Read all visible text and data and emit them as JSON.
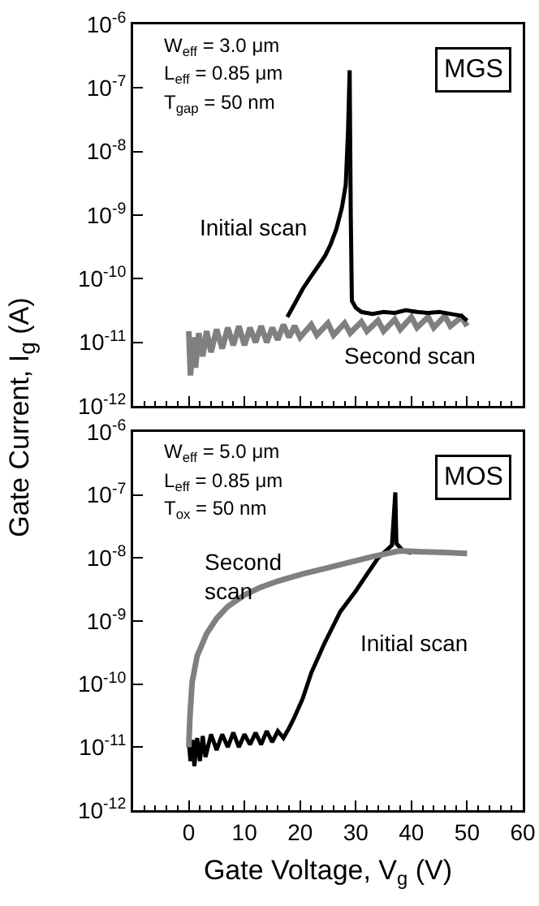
{
  "chart_data": [
    {
      "type": "line",
      "ylabel": "Gate Current, I$_{g}$ (A)",
      "xlim": [
        -10,
        60
      ],
      "xticks": [
        0,
        10,
        20,
        30,
        40,
        50,
        60
      ],
      "ylim": [
        1e-12,
        1e-06
      ],
      "log": "y",
      "tick_labels": "y",
      "grid": false,
      "yticks": [
        {
          "value": 1e-12,
          "label": "10$^{-12}$"
        },
        {
          "value": 1e-11,
          "label": "10$^{-11}$"
        },
        {
          "value": 1e-10,
          "label": "10$^{-10}$"
        },
        {
          "value": 1e-09,
          "label": "10$^{-9}$"
        },
        {
          "value": 1e-08,
          "label": "10$^{-8}$"
        },
        {
          "value": 1e-07,
          "label": "10$^{-7}$"
        },
        {
          "value": 1e-06,
          "label": "10$^{-6}$"
        }
      ],
      "annotations": [
        "W$_{eff}$ = 3.0 μm",
        "L$_{eff}$ = 0.85 μm",
        "T$_{gap}$ = 50 nm",
        "MGS",
        "Initial scan",
        "Second scan"
      ],
      "series": [
        {
          "color": "#808080",
          "x": [
            0,
            0.3,
            0.8,
            1.2,
            1.8,
            2.5,
            3.2,
            4,
            5,
            6,
            7,
            8,
            9,
            10,
            11,
            12,
            13,
            14,
            15,
            16,
            17,
            18,
            19,
            20,
            22,
            23,
            25,
            26,
            28,
            29,
            31,
            32,
            34,
            35,
            37,
            38,
            40,
            41,
            43,
            44,
            46,
            47,
            49,
            50
          ],
          "values": [
            1.5e-11,
            3e-12,
            1.2e-11,
            4e-12,
            1.4e-11,
            6e-12,
            1.5e-11,
            7e-12,
            1.6e-11,
            8e-12,
            1.7e-11,
            9e-12,
            1.8e-11,
            9e-12,
            1.7e-11,
            1e-11,
            1.8e-11,
            1e-11,
            1.7e-11,
            1.1e-11,
            1.9e-11,
            1.2e-11,
            1.8e-11,
            1.2e-11,
            1.9e-11,
            1.3e-11,
            2e-11,
            1.3e-11,
            2e-11,
            1.4e-11,
            2.1e-11,
            1.5e-11,
            2.2e-11,
            1.5e-11,
            2.3e-11,
            1.6e-11,
            2.5e-11,
            1.7e-11,
            2.5e-11,
            1.7e-11,
            2.6e-11,
            1.8e-11,
            2.5e-11,
            1.8e-11
          ]
        },
        {
          "color": "#000000",
          "x": [
            17.7,
            19,
            20.5,
            22,
            23.5,
            24.5,
            25.5,
            26.5,
            27.5,
            28.2,
            28.6,
            28.9,
            29.1,
            29.3,
            30,
            31,
            33,
            35,
            37,
            39,
            41,
            43,
            45,
            47,
            49,
            50
          ],
          "values": [
            2.5e-11,
            4e-11,
            7e-11,
            1.1e-10,
            1.7e-10,
            2.3e-10,
            3.5e-10,
            6e-10,
            1.3e-09,
            3e-09,
            2e-08,
            1.9e-07,
            1e-09,
            4.5e-11,
            3.5e-11,
            3e-11,
            2.8e-11,
            3e-11,
            2.9e-11,
            3.2e-11,
            3e-11,
            2.9e-11,
            3e-11,
            2.8e-11,
            2.6e-11,
            2.2e-11
          ]
        }
      ]
    },
    {
      "type": "line",
      "xlabel": "Gate Voltage, V$_{g}$ (V)",
      "xlim": [
        -10,
        60
      ],
      "xticks": [
        0,
        10,
        20,
        30,
        40,
        50,
        60
      ],
      "ylim": [
        1e-12,
        1e-06
      ],
      "log": "y",
      "grid": false,
      "yticks": [
        {
          "value": 1e-12,
          "label": "10$^{-12}$"
        },
        {
          "value": 1e-11,
          "label": "10$^{-11}$"
        },
        {
          "value": 1e-10,
          "label": "10$^{-10}$"
        },
        {
          "value": 1e-09,
          "label": "10$^{-9}$"
        },
        {
          "value": 1e-08,
          "label": "10$^{-8}$"
        },
        {
          "value": 1e-07,
          "label": "10$^{-7}$"
        },
        {
          "value": 1e-06,
          "label": "10$^{-6}$"
        }
      ],
      "annotations": [
        "W$_{eff}$ = 5.0 μm",
        "L$_{eff}$ = 0.85 μm",
        "T$_{ox}$ = 50 nm",
        "MOS",
        "Second\nscan",
        "Initial scan"
      ],
      "series": [
        {
          "color": "#000000",
          "x": [
            0,
            0.3,
            0.7,
            1,
            1.5,
            2,
            2.5,
            3,
            4,
            5,
            6,
            7,
            8,
            9,
            10,
            11,
            12,
            13,
            14,
            15,
            16,
            17,
            18,
            19,
            20.5,
            22,
            24.3,
            27.2,
            30,
            32,
            34,
            36.5,
            37.1,
            37.3,
            38.5,
            40
          ],
          "values": [
            1.2e-11,
            6e-12,
            1.3e-11,
            5e-12,
            1.4e-11,
            6e-12,
            1.5e-11,
            7e-12,
            1.6e-11,
            9e-12,
            1.6e-11,
            1e-11,
            1.7e-11,
            1e-11,
            1.6e-11,
            1.1e-11,
            1.7e-11,
            1.1e-11,
            1.8e-11,
            1.2e-11,
            1.8e-11,
            1.4e-11,
            2e-11,
            3e-11,
            6e-11,
            1.5e-10,
            4.3e-10,
            1.4e-09,
            3e-09,
            5.5e-09,
            1e-08,
            1.6e-08,
            1.1e-07,
            1.7e-08,
            1.3e-08,
            1.2e-08
          ]
        },
        {
          "color": "#808080",
          "x": [
            0,
            0.2,
            0.6,
            1.5,
            3.2,
            5,
            7,
            10,
            12.8,
            16,
            20.5,
            25,
            29.2,
            33,
            37.9,
            42,
            46,
            50
          ],
          "values": [
            1e-11,
            3e-11,
            1.07e-10,
            2.8e-10,
            6.3e-10,
            1.1e-09,
            1.7e-09,
            2.6e-09,
            3.4e-09,
            4.3e-09,
            5.6e-09,
            7e-09,
            8.7e-09,
            1.05e-08,
            1.3e-08,
            1.25e-08,
            1.22e-08,
            1.18e-08
          ]
        }
      ]
    }
  ]
}
